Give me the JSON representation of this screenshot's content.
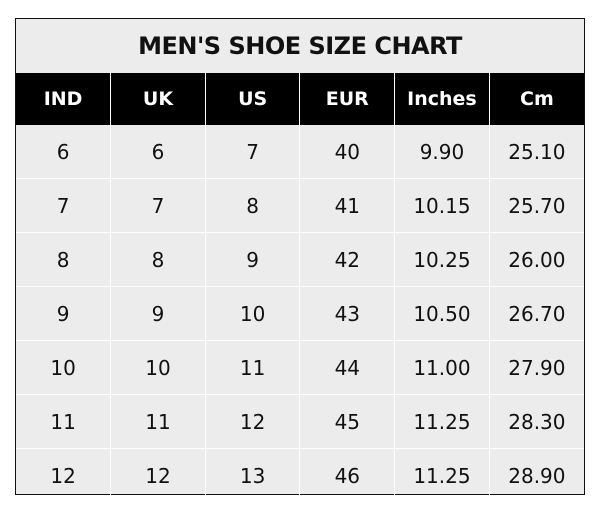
{
  "title": "MEN'S SHOE SIZE CHART",
  "headers": [
    "IND",
    "UK",
    "US",
    "EUR",
    "Inches",
    "Cm"
  ],
  "rows": [
    [
      "6",
      "6",
      "7",
      "40",
      "9.90",
      "25.10"
    ],
    [
      "7",
      "7",
      "8",
      "41",
      "10.15",
      "25.70"
    ],
    [
      "8",
      "8",
      "9",
      "42",
      "10.25",
      "26.00"
    ],
    [
      "9",
      "9",
      "10",
      "43",
      "10.50",
      "26.70"
    ],
    [
      "10",
      "10",
      "11",
      "44",
      "11.00",
      "27.90"
    ],
    [
      "11",
      "11",
      "12",
      "45",
      "11.25",
      "28.30"
    ],
    [
      "12",
      "12",
      "13",
      "46",
      "11.25",
      "28.90"
    ]
  ],
  "colors": {
    "header_bg": "#000000",
    "header_text": "#ffffff",
    "body_bg": "#ececec"
  }
}
